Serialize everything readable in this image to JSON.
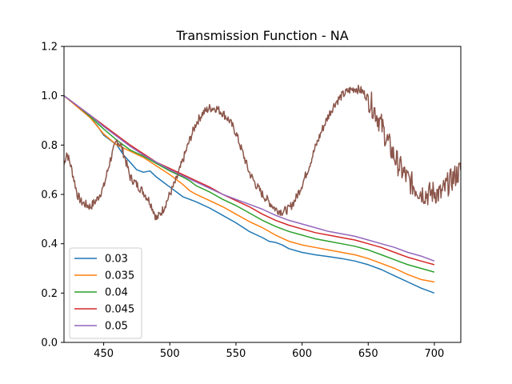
{
  "chart_data": {
    "type": "line",
    "title": "Transmission Function - NA",
    "xlabel": "",
    "ylabel": "",
    "xlim": [
      420,
      720
    ],
    "ylim": [
      0.0,
      1.2
    ],
    "xticks": [
      450,
      500,
      550,
      600,
      650,
      700
    ],
    "xtick_labels": [
      "450",
      "500",
      "550",
      "600",
      "650",
      "700"
    ],
    "yticks": [
      0.0,
      0.2,
      0.4,
      0.6,
      0.8,
      1.0,
      1.2
    ],
    "ytick_labels": [
      "0.0",
      "0.2",
      "0.4",
      "0.6",
      "0.8",
      "1.0",
      "1.2"
    ],
    "grid": false,
    "legend_position": "lower-left",
    "series": [
      {
        "name": "0.03",
        "color": "#1f77b4",
        "x": [
          420,
          430,
          440,
          445,
          450,
          455,
          460,
          465,
          470,
          475,
          480,
          485,
          490,
          495,
          500,
          505,
          510,
          520,
          530,
          540,
          550,
          560,
          570,
          575,
          580,
          585,
          590,
          600,
          610,
          620,
          630,
          640,
          650,
          660,
          670,
          680,
          690,
          700
        ],
        "y": [
          1.0,
          0.96,
          0.91,
          0.88,
          0.84,
          0.82,
          0.8,
          0.76,
          0.73,
          0.7,
          0.69,
          0.695,
          0.67,
          0.65,
          0.63,
          0.61,
          0.59,
          0.57,
          0.545,
          0.515,
          0.485,
          0.45,
          0.425,
          0.41,
          0.405,
          0.395,
          0.38,
          0.365,
          0.355,
          0.348,
          0.34,
          0.33,
          0.315,
          0.295,
          0.27,
          0.245,
          0.22,
          0.2
        ]
      },
      {
        "name": "0.035",
        "color": "#ff7f0e",
        "x": [
          420,
          430,
          440,
          450,
          460,
          470,
          480,
          490,
          500,
          505,
          510,
          515,
          520,
          530,
          540,
          550,
          560,
          570,
          580,
          590,
          600,
          610,
          620,
          630,
          640,
          650,
          660,
          670,
          680,
          690,
          700
        ],
        "y": [
          1.0,
          0.955,
          0.91,
          0.845,
          0.8,
          0.775,
          0.75,
          0.715,
          0.68,
          0.66,
          0.64,
          0.615,
          0.6,
          0.575,
          0.55,
          0.52,
          0.49,
          0.465,
          0.435,
          0.41,
          0.395,
          0.385,
          0.375,
          0.365,
          0.355,
          0.34,
          0.32,
          0.3,
          0.275,
          0.255,
          0.245
        ]
      },
      {
        "name": "0.04",
        "color": "#2ca02c",
        "x": [
          420,
          430,
          440,
          450,
          460,
          470,
          480,
          490,
          500,
          510,
          515,
          520,
          530,
          540,
          550,
          560,
          570,
          580,
          590,
          600,
          610,
          620,
          630,
          640,
          650,
          660,
          670,
          680,
          690,
          700
        ],
        "y": [
          1.0,
          0.96,
          0.915,
          0.865,
          0.82,
          0.78,
          0.755,
          0.725,
          0.695,
          0.67,
          0.655,
          0.635,
          0.61,
          0.58,
          0.555,
          0.525,
          0.495,
          0.47,
          0.45,
          0.435,
          0.42,
          0.41,
          0.4,
          0.39,
          0.375,
          0.355,
          0.335,
          0.315,
          0.3,
          0.285
        ]
      },
      {
        "name": "0.045",
        "color": "#d62728",
        "x": [
          420,
          430,
          440,
          450,
          460,
          470,
          480,
          490,
          500,
          510,
          520,
          530,
          540,
          550,
          560,
          570,
          580,
          590,
          600,
          610,
          620,
          630,
          640,
          650,
          660,
          670,
          680,
          690,
          700
        ],
        "y": [
          1.0,
          0.96,
          0.92,
          0.88,
          0.84,
          0.8,
          0.765,
          0.73,
          0.705,
          0.68,
          0.655,
          0.63,
          0.6,
          0.575,
          0.55,
          0.52,
          0.495,
          0.475,
          0.46,
          0.445,
          0.435,
          0.425,
          0.415,
          0.4,
          0.385,
          0.365,
          0.345,
          0.33,
          0.315
        ]
      },
      {
        "name": "0.05",
        "color": "#9467bd",
        "x": [
          420,
          430,
          440,
          450,
          460,
          470,
          480,
          490,
          500,
          510,
          520,
          530,
          540,
          550,
          560,
          570,
          580,
          590,
          600,
          610,
          620,
          630,
          640,
          650,
          660,
          670,
          680,
          690,
          700
        ],
        "y": [
          1.0,
          0.96,
          0.92,
          0.875,
          0.835,
          0.795,
          0.76,
          0.73,
          0.7,
          0.675,
          0.65,
          0.625,
          0.6,
          0.58,
          0.56,
          0.54,
          0.515,
          0.495,
          0.48,
          0.465,
          0.45,
          0.44,
          0.43,
          0.415,
          0.4,
          0.385,
          0.365,
          0.35,
          0.33
        ]
      },
      {
        "name": "",
        "color": "#8c564b",
        "noisy": true,
        "x": [
          420,
          422,
          425,
          428,
          430,
          433,
          436,
          440,
          445,
          450,
          455,
          460,
          463,
          466,
          470,
          475,
          480,
          485,
          488,
          490,
          495,
          500,
          505,
          510,
          515,
          520,
          525,
          530,
          535,
          540,
          545,
          550,
          555,
          560,
          565,
          570,
          575,
          580,
          585,
          590,
          595,
          600,
          605,
          610,
          615,
          620,
          625,
          630,
          635,
          640,
          645,
          650,
          655,
          660,
          665,
          670,
          675,
          680,
          685,
          690,
          695,
          700,
          705,
          710,
          715,
          720
        ],
        "y": [
          0.72,
          0.77,
          0.72,
          0.65,
          0.6,
          0.57,
          0.56,
          0.55,
          0.58,
          0.63,
          0.74,
          0.82,
          0.8,
          0.75,
          0.67,
          0.64,
          0.61,
          0.57,
          0.53,
          0.5,
          0.54,
          0.6,
          0.66,
          0.74,
          0.82,
          0.89,
          0.93,
          0.95,
          0.95,
          0.93,
          0.9,
          0.85,
          0.77,
          0.69,
          0.64,
          0.6,
          0.57,
          0.54,
          0.53,
          0.54,
          0.58,
          0.64,
          0.71,
          0.79,
          0.86,
          0.92,
          0.97,
          1.0,
          1.02,
          1.03,
          1.02,
          0.99,
          0.94,
          0.88,
          0.81,
          0.75,
          0.7,
          0.66,
          0.63,
          0.61,
          0.6,
          0.61,
          0.6,
          0.64,
          0.67,
          0.7
        ]
      }
    ]
  }
}
